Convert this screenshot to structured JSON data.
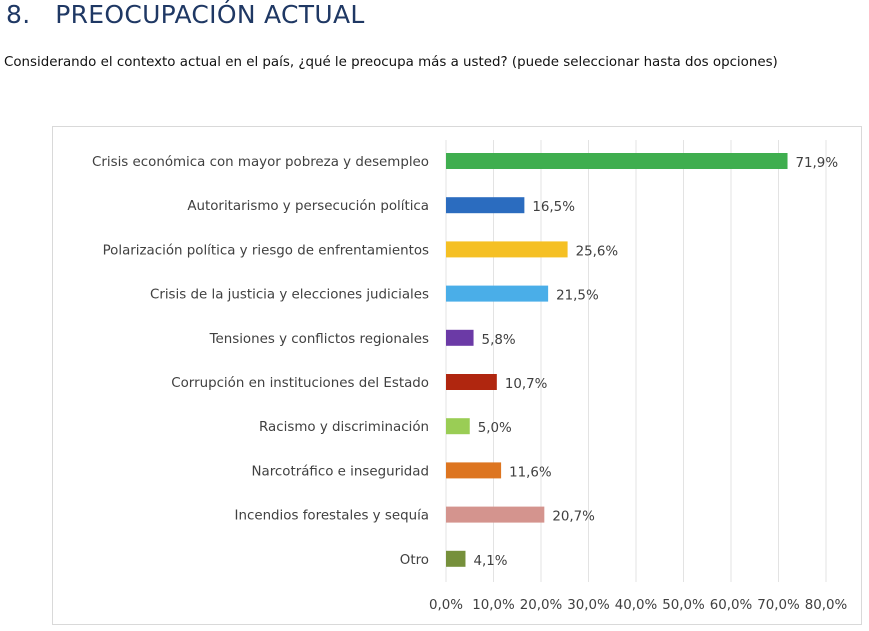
{
  "header": {
    "title": "8.   PREOCUPACIÓN ACTUAL",
    "question": "Considerando el contexto actual en el país, ¿qué le preocupa más a usted? (puede seleccionar hasta dos opciones)"
  },
  "chart_data": {
    "type": "bar",
    "orientation": "horizontal",
    "categories": [
      "Crisis económica con mayor pobreza y desempleo",
      "Autoritarismo y persecución política",
      "Polarización política y riesgo de enfrentamientos",
      "Crisis de la justicia y elecciones judiciales",
      "Tensiones y conflictos regionales",
      "Corrupción en instituciones del Estado",
      "Racismo y discriminación",
      "Narcotráfico e inseguridad",
      "Incendios forestales y sequía",
      "Otro"
    ],
    "values": [
      71.9,
      16.5,
      25.6,
      21.5,
      5.8,
      10.7,
      5.0,
      11.6,
      20.7,
      4.1
    ],
    "data_labels": [
      "71,9%",
      "16,5%",
      "25,6%",
      "21,5%",
      "5,8%",
      "10,7%",
      "5,0%",
      "11,6%",
      "20,7%",
      "4,1%"
    ],
    "colors": [
      "#3fae4f",
      "#2b6cbf",
      "#f5c024",
      "#4aaee8",
      "#6b3aa6",
      "#b0260f",
      "#9acd55",
      "#dd7520",
      "#d4948e",
      "#76903b"
    ],
    "xlim": [
      0,
      80
    ],
    "x_ticks": [
      0,
      10,
      20,
      30,
      40,
      50,
      60,
      70,
      80
    ],
    "x_tick_labels": [
      "0,0%",
      "10,0%",
      "20,0%",
      "30,0%",
      "40,0%",
      "50,0%",
      "60,0%",
      "70,0%",
      "80,0%"
    ],
    "grid": "vertical",
    "legend": "none"
  }
}
